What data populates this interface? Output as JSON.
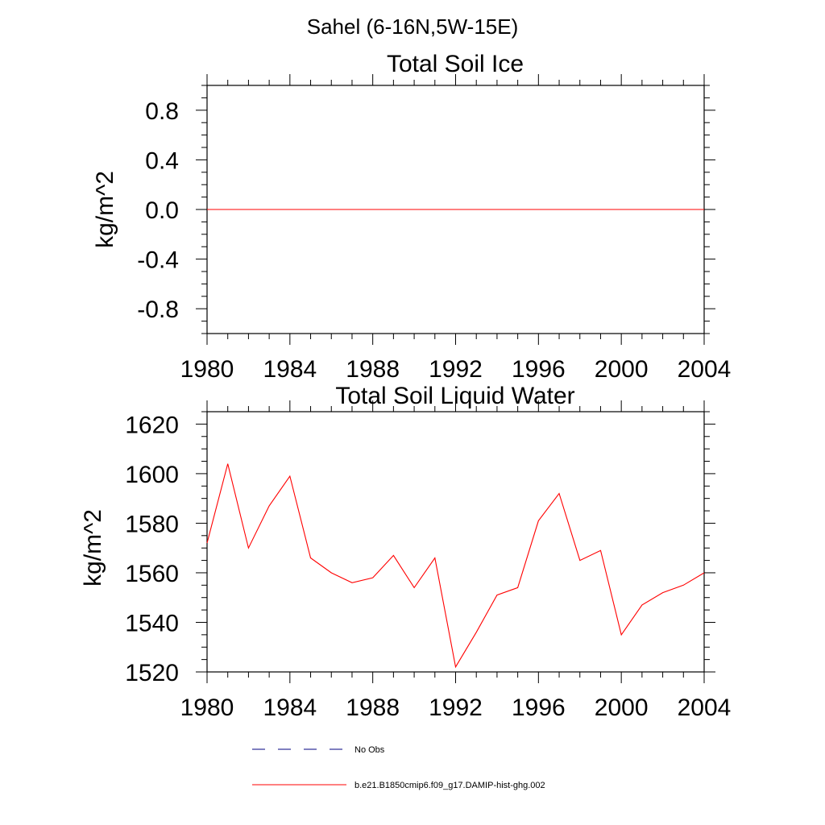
{
  "suptitle": "Sahel (6-16N,5W-15E)",
  "chart_data": [
    {
      "type": "line",
      "title": "Total Soil Ice",
      "ylabel": "kg/m^2",
      "xlabel": "",
      "x": [
        1980,
        1981,
        1982,
        1983,
        1984,
        1985,
        1986,
        1987,
        1988,
        1989,
        1990,
        1991,
        1992,
        1993,
        1994,
        1995,
        1996,
        1997,
        1998,
        1999,
        2000,
        2001,
        2002,
        2003,
        2004
      ],
      "xlim": [
        1980,
        2004
      ],
      "ylim": [
        -1.0,
        1.0
      ],
      "xticks": [
        "1980",
        "1984",
        "1988",
        "1992",
        "1996",
        "2000",
        "2004"
      ],
      "yticks": [
        "0.8",
        "0.4",
        "0.0",
        "-0.4",
        "-0.8"
      ],
      "series": [
        {
          "name": "b.e21.B1850cmip6.f09_g17.DAMIP-hist-ghg.002",
          "color": "#ff0000",
          "values": [
            0,
            0,
            0,
            0,
            0,
            0,
            0,
            0,
            0,
            0,
            0,
            0,
            0,
            0,
            0,
            0,
            0,
            0,
            0,
            0,
            0,
            0,
            0,
            0,
            0
          ]
        }
      ]
    },
    {
      "type": "line",
      "title": "Total Soil Liquid Water",
      "ylabel": "kg/m^2",
      "xlabel": "",
      "x": [
        1980,
        1981,
        1982,
        1983,
        1984,
        1985,
        1986,
        1987,
        1988,
        1989,
        1990,
        1991,
        1992,
        1993,
        1994,
        1995,
        1996,
        1997,
        1998,
        1999,
        2000,
        2001,
        2002,
        2003,
        2004
      ],
      "xlim": [
        1980,
        2004
      ],
      "ylim": [
        1520,
        1625
      ],
      "xticks": [
        "1980",
        "1984",
        "1988",
        "1992",
        "1996",
        "2000",
        "2004"
      ],
      "yticks": [
        "1620",
        "1600",
        "1580",
        "1560",
        "1540",
        "1520"
      ],
      "series": [
        {
          "name": "b.e21.B1850cmip6.f09_g17.DAMIP-hist-ghg.002",
          "color": "#ff0000",
          "values": [
            1572,
            1604,
            1570,
            1587,
            1599,
            1566,
            1560,
            1556,
            1558,
            1567,
            1554,
            1566,
            1522,
            1536,
            1551,
            1554,
            1581,
            1592,
            1565,
            1569,
            1535,
            1547,
            1552,
            1555,
            1560
          ]
        }
      ]
    }
  ],
  "legend": {
    "items": [
      {
        "label": "No Obs",
        "style": "dashed",
        "color": "#000080"
      },
      {
        "label": "b.e21.B1850cmip6.f09_g17.DAMIP-hist-ghg.002",
        "style": "solid",
        "color": "#ff0000"
      }
    ]
  }
}
